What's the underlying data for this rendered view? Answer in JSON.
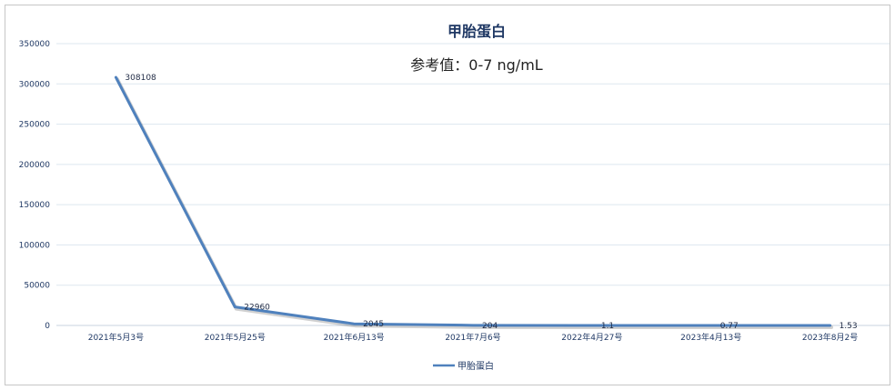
{
  "chart_data": {
    "type": "line",
    "title": "甲胎蛋白",
    "subtitle": "参考值：0-7 ng/mL",
    "xlabel": "",
    "ylabel": "",
    "categories": [
      "2021年5月3号",
      "2021年5月25号",
      "2021年6月13号",
      "2021年7月6号",
      "2022年4月27号",
      "2023年4月13号",
      "2023年8月2号"
    ],
    "series": [
      {
        "name": "甲胎蛋白",
        "values": [
          308108,
          22960,
          2045,
          204,
          1.1,
          0.77,
          1.53
        ],
        "labels": [
          "308108",
          "22960",
          "2045",
          "204",
          "1.1",
          "0.77",
          "1.53"
        ],
        "color": "#4f81bd"
      }
    ],
    "ylim": [
      0,
      350000
    ],
    "yticks": [
      "0",
      "50000",
      "100000",
      "150000",
      "200000",
      "250000",
      "300000",
      "350000"
    ],
    "grid": true,
    "legend_position": "bottom"
  }
}
